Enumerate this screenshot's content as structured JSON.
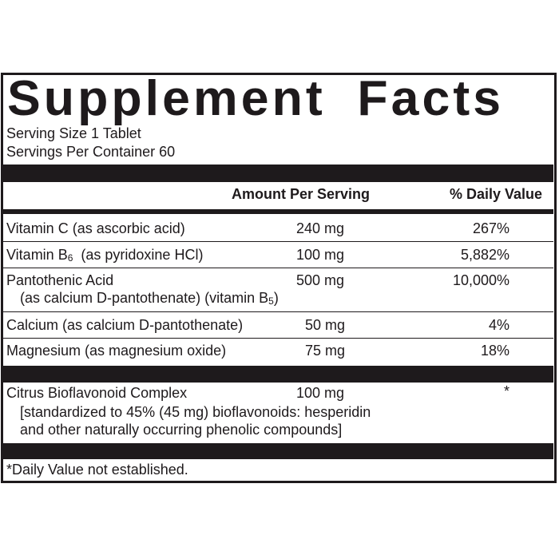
{
  "title": "Supplement Facts",
  "serving_size": "Serving Size  1 Tablet",
  "servings_per_container": "Servings Per Container 60",
  "header": {
    "amount": "Amount Per Serving",
    "daily_value": "% Daily Value"
  },
  "rows": [
    {
      "name": "Vitamin C (as ascorbic acid)",
      "amount": "240 mg",
      "dv": "267%"
    },
    {
      "name_pre": "Vitamin B",
      "name_sub": "6",
      "name_post": "  (as pyridoxine HCl)",
      "amount": "100 mg",
      "dv": "5,882%"
    },
    {
      "name": "Pantothenic Acid",
      "name2_pre": "(as calcium D-pantothenate) (vitamin B",
      "name2_sub": "5",
      "name2_post": ")",
      "amount": "500 mg",
      "dv": "10,000%"
    },
    {
      "name": "Calcium (as calcium D-pantothenate)",
      "amount": "50 mg",
      "dv": "4%"
    },
    {
      "name": "Magnesium (as magnesium oxide)",
      "amount": "75 mg",
      "dv": "18%"
    }
  ],
  "other": {
    "name": "Citrus Bioflavonoid Complex",
    "amount": "100 mg",
    "dv": "*",
    "line2": "[standardized to 45% (45 mg) bioflavonoids: hesperidin",
    "line3": "and other naturally occurring phenolic compounds]"
  },
  "footnote": "*Daily Value not established.",
  "colors": {
    "ink": "#1e1a1c",
    "background": "#ffffff"
  }
}
